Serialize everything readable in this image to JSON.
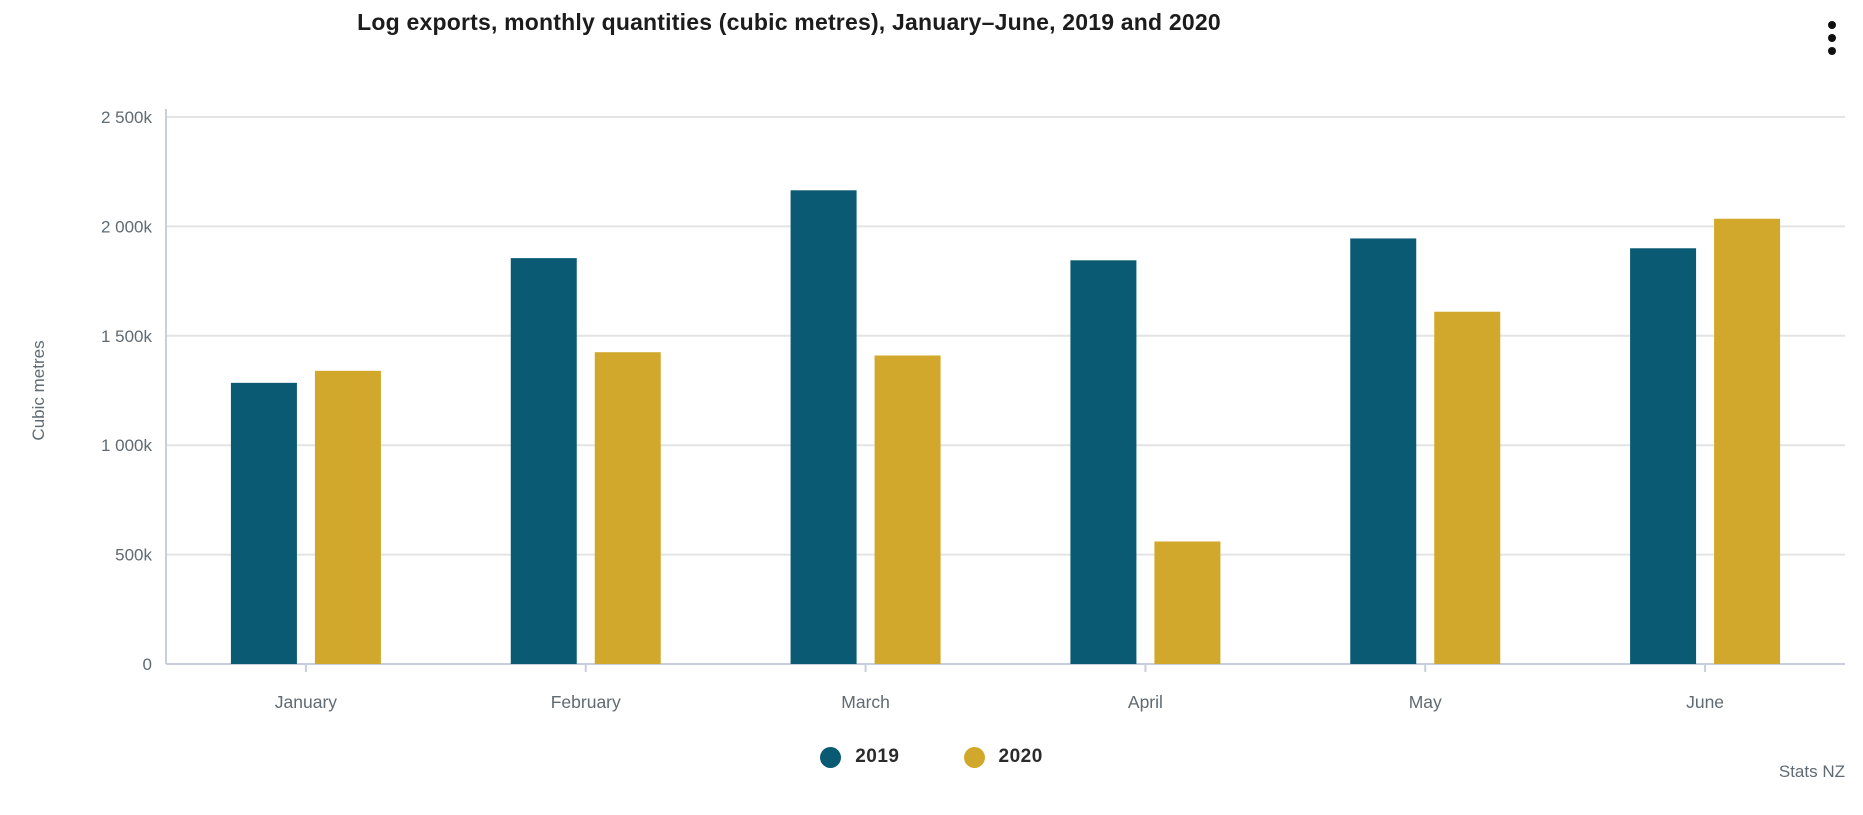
{
  "header": {
    "title": "Log exports, monthly quantities (cubic metres), January–June, 2019 and 2020",
    "menu_icon": "kebab-menu-icon"
  },
  "chart_data": {
    "type": "bar",
    "title": "Log exports, monthly quantities (cubic metres), January–June, 2019 and 2020",
    "ylabel": "Cubic metres",
    "xlabel": "",
    "categories": [
      "January",
      "February",
      "March",
      "April",
      "May",
      "June"
    ],
    "series": [
      {
        "name": "2019",
        "color": "#0A5A73",
        "values": [
          1285,
          1855,
          2165,
          1845,
          1945,
          1900
        ]
      },
      {
        "name": "2020",
        "color": "#D1A82B",
        "values": [
          1340,
          1425,
          1410,
          560,
          1610,
          2035
        ]
      }
    ],
    "value_unit": "thousand cubic metres (k)",
    "ylim": [
      0,
      2500
    ],
    "ytick_step": 500,
    "ytick_labels": [
      "0",
      "500k",
      "1 000k",
      "1 500k",
      "2 000k",
      "2 500k"
    ],
    "grid": "horizontal",
    "legend_position": "bottom-center"
  },
  "legend": {
    "items": [
      {
        "label": "2019",
        "color": "#0A5A73"
      },
      {
        "label": "2020",
        "color": "#D1A82B"
      }
    ]
  },
  "source": {
    "label": "Stats NZ"
  },
  "colors": {
    "series_2019": "#0A5A73",
    "series_2020": "#D1A82B",
    "axis_line": "#C9CEDE",
    "gridline": "#E4E4E4",
    "axis_text": "#5F6A72",
    "title_text": "#1C1C1C",
    "legend_text": "#2B2B2B"
  }
}
